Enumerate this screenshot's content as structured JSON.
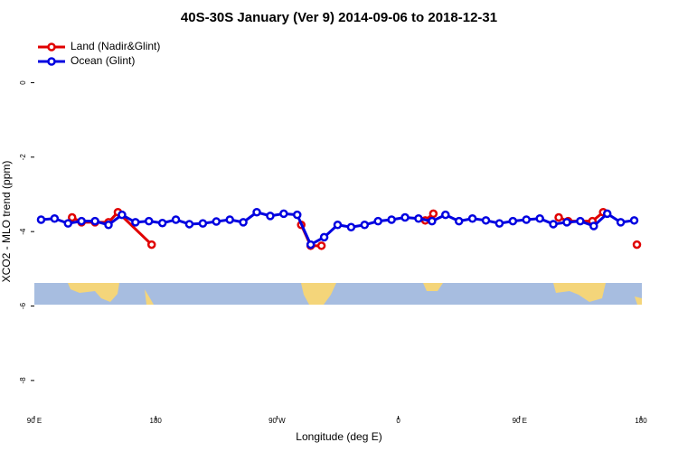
{
  "chart_data": {
    "type": "line",
    "title": "40S-30S January (Ver 9)   2014-09-06 to 2018-12-31",
    "x_label": "Longitude (deg E)",
    "y_label": "XCO2 - MLO trend (ppm)",
    "xlim": [
      90,
      540
    ],
    "ylim": [
      -8.95,
      1.25
    ],
    "xticks": [
      {
        "value": 90,
        "label": "90 E"
      },
      180,
      {
        "value": 270,
        "label": "90 W"
      },
      {
        "value": 360,
        "label": "0"
      },
      {
        "value": 450,
        "label": "90 E"
      },
      {
        "value": 540,
        "label": "180"
      }
    ],
    "yticks": [
      -8,
      -6,
      -4,
      -2,
      0
    ],
    "legend": "top-left",
    "series": [
      {
        "name": "Land (Nadir&Glint)",
        "color": "#e00000",
        "x": [
          118,
          125,
          135,
          145,
          152,
          177,
          null,
          288,
          295,
          303,
          null,
          380,
          386,
          null,
          479,
          486,
          504,
          512,
          null,
          537
        ],
        "values": [
          -3.62,
          -3.75,
          -3.75,
          -3.75,
          -3.48,
          -4.35,
          null,
          -3.82,
          -4.38,
          -4.38,
          null,
          -3.7,
          -3.52,
          null,
          -3.62,
          -3.72,
          -3.72,
          -3.48,
          null,
          -4.35
        ]
      },
      {
        "name": "Ocean (Glint)",
        "color": "#0000e0",
        "x": [
          95,
          105,
          115,
          125,
          135,
          145,
          155,
          165,
          175,
          185,
          195,
          205,
          215,
          225,
          235,
          245,
          255,
          265,
          275,
          285,
          295,
          305,
          315,
          325,
          335,
          345,
          355,
          365,
          375,
          385,
          395,
          405,
          415,
          425,
          435,
          445,
          455,
          465,
          475,
          485,
          495,
          505,
          515,
          525,
          535
        ],
        "values": [
          -3.68,
          -3.65,
          -3.78,
          -3.72,
          -3.72,
          -3.82,
          -3.55,
          -3.75,
          -3.72,
          -3.77,
          -3.68,
          -3.8,
          -3.78,
          -3.73,
          -3.68,
          -3.75,
          -3.48,
          -3.58,
          -3.52,
          -3.55,
          -4.35,
          -4.15,
          -3.82,
          -3.88,
          -3.82,
          -3.72,
          -3.68,
          -3.62,
          -3.65,
          -3.72,
          -3.55,
          -3.72,
          -3.65,
          -3.7,
          -3.78,
          -3.72,
          -3.68,
          -3.65,
          -3.8,
          -3.75,
          -3.72,
          -3.85,
          -3.52,
          -3.75,
          -3.7
        ]
      }
    ]
  }
}
